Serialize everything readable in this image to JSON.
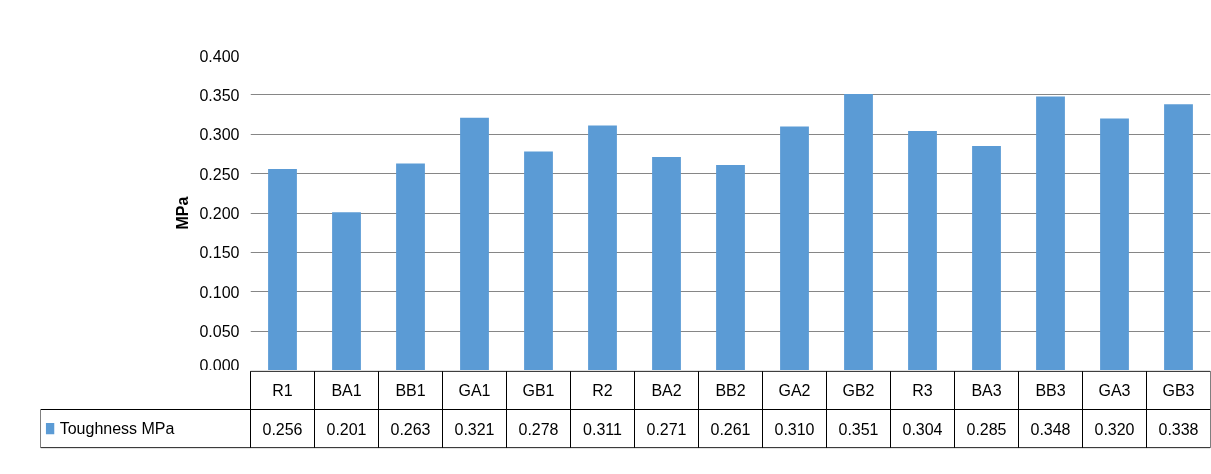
{
  "chart_data": {
    "type": "bar",
    "ylabel": "MPa",
    "categories": [
      "R1",
      "BA1",
      "BB1",
      "GA1",
      "GB1",
      "R2",
      "BA2",
      "BB2",
      "GA2",
      "GB2",
      "R3",
      "BA3",
      "BB3",
      "GA3",
      "GB3"
    ],
    "series": [
      {
        "name": "Toughness MPa",
        "color": "#5b9bd5",
        "values": [
          0.256,
          0.201,
          0.263,
          0.321,
          0.278,
          0.311,
          0.271,
          0.261,
          0.31,
          0.351,
          0.304,
          0.285,
          0.348,
          0.32,
          0.338
        ],
        "value_labels": [
          "0.256",
          "0.201",
          "0.263",
          "0.321",
          "0.278",
          "0.311",
          "0.271",
          "0.261",
          "0.310",
          "0.351",
          "0.304",
          "0.285",
          "0.348",
          "0.320",
          "0.338"
        ]
      }
    ],
    "ylim": [
      0,
      0.4
    ],
    "yticks": [
      {
        "value": 0,
        "label": "0.000"
      },
      {
        "value": 0.05,
        "label": "0.050"
      },
      {
        "value": 0.1,
        "label": "0.100"
      },
      {
        "value": 0.15,
        "label": "0.150"
      },
      {
        "value": 0.2,
        "label": "0.200"
      },
      {
        "value": 0.25,
        "label": "0.250"
      },
      {
        "value": 0.3,
        "label": "0.300"
      },
      {
        "value": 0.35,
        "label": "0.350"
      },
      {
        "value": 0.4,
        "label": "0.400"
      }
    ],
    "grid": "y",
    "legend": "bottom"
  }
}
